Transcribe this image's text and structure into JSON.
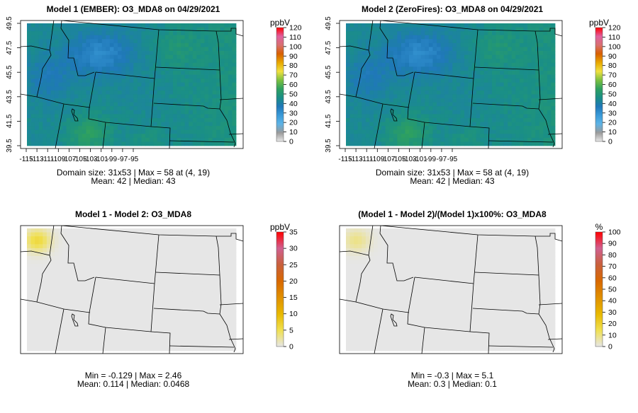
{
  "chart_data": [
    {
      "type": "heatmap",
      "title": "Model 1 (EMBER): O3_MDA8 on 04/29/2021",
      "kind": "field",
      "stats_line1": "Domain size: 31x53 | Max = 58 at (4, 19)",
      "stats_line2": "Mean: 42 |  Median: 43",
      "colorbar": {
        "unit": "ppbV",
        "range": [
          0,
          120
        ],
        "ticks": [
          "0",
          "10",
          "20",
          "30",
          "40",
          "50",
          "60",
          "70",
          "80",
          "90",
          "100",
          "110",
          "120"
        ]
      },
      "x_ticks": [
        "-115",
        "-113",
        "-111",
        "-109",
        "-107",
        "-105",
        "-103",
        "-101",
        "-99",
        "-97",
        "-95"
      ],
      "y_ticks": [
        "39.5",
        "41.5",
        "43.5",
        "45.5",
        "47.5",
        "49.5"
      ],
      "xlim": [
        -115,
        -95
      ],
      "ylim": [
        39.5,
        49.5
      ],
      "grid_size": [
        31,
        53
      ],
      "max": 58,
      "mean": 42,
      "median": 43
    },
    {
      "type": "heatmap",
      "title": "Model 2 (ZeroFires): O3_MDA8 on 04/29/2021",
      "kind": "field",
      "stats_line1": "Domain size: 31x53 | Max = 58 at (4, 19)",
      "stats_line2": "Mean: 42 |  Median: 43",
      "colorbar": {
        "unit": "ppbV",
        "range": [
          0,
          120
        ],
        "ticks": [
          "0",
          "10",
          "20",
          "30",
          "40",
          "50",
          "60",
          "70",
          "80",
          "90",
          "100",
          "110",
          "120"
        ]
      },
      "x_ticks": [
        "-115",
        "-113",
        "-111",
        "-109",
        "-107",
        "-105",
        "-103",
        "-101",
        "-99",
        "-97",
        "-95"
      ],
      "y_ticks": [
        "39.5",
        "41.5",
        "43.5",
        "45.5",
        "47.5",
        "49.5"
      ],
      "xlim": [
        -115,
        -95
      ],
      "ylim": [
        39.5,
        49.5
      ],
      "grid_size": [
        31,
        53
      ],
      "max": 58,
      "mean": 42,
      "median": 43
    },
    {
      "type": "heatmap",
      "title": "Model 1 - Model 2: O3_MDA8",
      "kind": "diff",
      "stats_line1": "Min = -0.129 | Max = 2.46",
      "stats_line2": "Mean: 0.114 |  Median: 0.0468",
      "colorbar": {
        "unit": "ppbV",
        "range": [
          0,
          35
        ],
        "ticks": [
          "0",
          "5",
          "10",
          "15",
          "20",
          "25",
          "30",
          "35"
        ]
      },
      "min": -0.129,
      "max": 2.46,
      "mean": 0.114,
      "median": 0.0468
    },
    {
      "type": "heatmap",
      "title": "(Model 1 - Model 2)/(Model 1)x100%: O3_MDA8",
      "kind": "diff",
      "stats_line1": "Min = -0.3 | Max = 5.1",
      "stats_line2": "Mean: 0.3 |  Median: 0.1",
      "colorbar": {
        "unit": "%",
        "range": [
          0,
          100
        ],
        "ticks": [
          "0",
          "10",
          "20",
          "30",
          "40",
          "50",
          "60",
          "70",
          "80",
          "90",
          "100"
        ]
      },
      "min": -0.3,
      "max": 5.1,
      "mean": 0.3,
      "median": 0.1
    }
  ],
  "colors": {
    "field_scale": [
      "#e8e8e8",
      "#9a9a9a",
      "#5db3e6",
      "#3a9ad8",
      "#1f78b8",
      "#1a8f86",
      "#2ea060",
      "#7cc040",
      "#f0e040",
      "#e8a800",
      "#d86000",
      "#d87070",
      "#e060a0",
      "#ff0000"
    ],
    "diff_scale": [
      "#e6e6e6",
      "#f0e050",
      "#e8b800",
      "#e09000",
      "#d86800",
      "#c8603c",
      "#d06090",
      "#ff0000"
    ],
    "background": "#e6e6e6"
  }
}
